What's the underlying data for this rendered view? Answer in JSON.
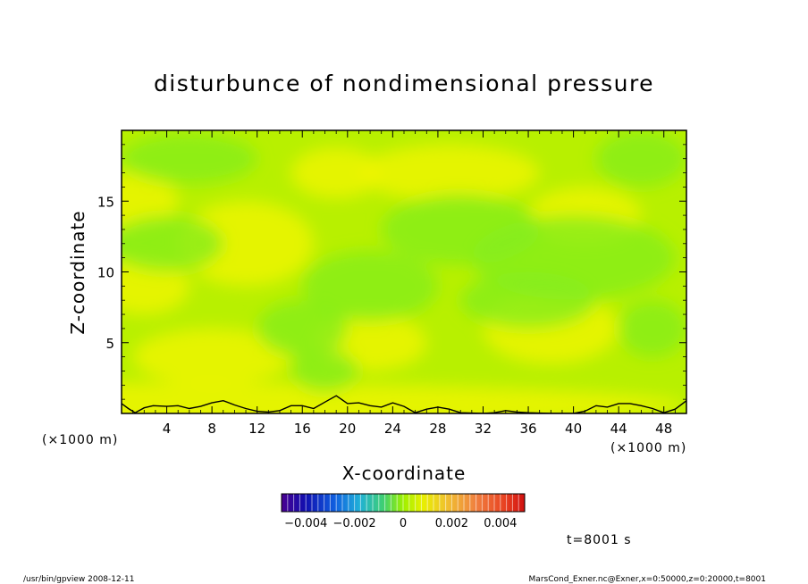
{
  "chart_data": {
    "type": "heatmap",
    "title": "disturbunce of nondimensional pressure",
    "xlabel": "X-coordinate",
    "ylabel": "Z-coordinate",
    "x_unit": "(×1000 m)",
    "y_unit": "(×1000 m)",
    "xlim": [
      0,
      50
    ],
    "ylim": [
      0,
      20
    ],
    "x_ticks": [
      "4",
      "8",
      "12",
      "16",
      "20",
      "24",
      "28",
      "32",
      "36",
      "40",
      "44",
      "48"
    ],
    "x_tick_values": [
      4,
      8,
      12,
      16,
      20,
      24,
      28,
      32,
      36,
      40,
      44,
      48
    ],
    "y_ticks": [
      "5",
      "10",
      "15"
    ],
    "y_tick_values": [
      5,
      10,
      15
    ],
    "colorbar": {
      "range": [
        -0.005,
        0.005
      ],
      "tick_labels": [
        "−0.004",
        "−0.002",
        "0",
        "0.002",
        "0.004"
      ],
      "tick_values": [
        -0.004,
        -0.002,
        0,
        0.002,
        0.004
      ]
    },
    "field_range_estimate": [
      -0.0015,
      0.0012
    ],
    "field_colors": {
      "low": "#86ee1c",
      "mid": "#b8f000",
      "high": "#f0f500"
    },
    "contour_level": 0,
    "zero_contour_z": [
      [
        0.0,
        0.7
      ],
      [
        0.6,
        0.35
      ],
      [
        1.2,
        0.05
      ],
      [
        2.0,
        0.4
      ],
      [
        2.8,
        0.55
      ],
      [
        4.0,
        0.5
      ],
      [
        5.0,
        0.55
      ],
      [
        6.0,
        0.35
      ],
      [
        7.0,
        0.5
      ],
      [
        8.0,
        0.75
      ],
      [
        9.0,
        0.9
      ],
      [
        10.0,
        0.6
      ],
      [
        11.0,
        0.35
      ],
      [
        12.0,
        0.15
      ],
      [
        13.0,
        0.1
      ],
      [
        14.0,
        0.2
      ],
      [
        15.0,
        0.55
      ],
      [
        16.0,
        0.55
      ],
      [
        17.0,
        0.35
      ],
      [
        18.0,
        0.8
      ],
      [
        19.0,
        1.25
      ],
      [
        20.0,
        0.7
      ],
      [
        21.0,
        0.75
      ],
      [
        22.0,
        0.55
      ],
      [
        23.0,
        0.45
      ],
      [
        24.0,
        0.75
      ],
      [
        25.0,
        0.5
      ],
      [
        26.0,
        0.05
      ],
      [
        27.0,
        0.3
      ],
      [
        28.0,
        0.45
      ],
      [
        29.0,
        0.3
      ],
      [
        30.0,
        0.05
      ],
      [
        32.0,
        0.0
      ],
      [
        33.0,
        0.05
      ],
      [
        34.0,
        0.2
      ],
      [
        35.0,
        0.1
      ],
      [
        36.0,
        0.05
      ],
      [
        38.0,
        0.0
      ],
      [
        40.0,
        0.0
      ],
      [
        41.0,
        0.15
      ],
      [
        42.0,
        0.55
      ],
      [
        43.0,
        0.45
      ],
      [
        44.0,
        0.7
      ],
      [
        45.0,
        0.7
      ],
      [
        46.0,
        0.55
      ],
      [
        47.0,
        0.35
      ],
      [
        48.0,
        0.05
      ],
      [
        49.0,
        0.3
      ],
      [
        50.0,
        0.9
      ]
    ],
    "annotation": "t=8001 s"
  },
  "footer": {
    "program": "/usr/bin/gpview   2008-12-11",
    "source": "MarsCond_Exner.nc@Exner,x=0:50000,z=0:20000,t=8001"
  }
}
